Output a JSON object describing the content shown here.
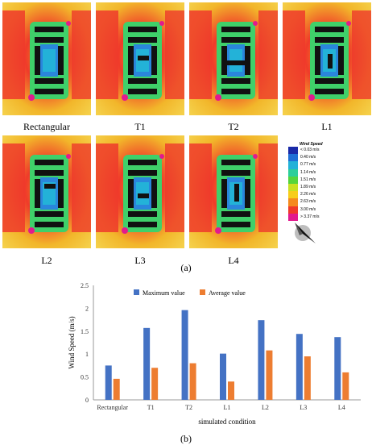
{
  "panels": [
    {
      "label": "Rectangular",
      "variant": "rect"
    },
    {
      "label": "T1",
      "variant": "t1"
    },
    {
      "label": "T2",
      "variant": "t2"
    },
    {
      "label": "L1",
      "variant": "l1"
    },
    {
      "label": "L2",
      "variant": "l2"
    },
    {
      "label": "L3",
      "variant": "l3"
    },
    {
      "label": "L4",
      "variant": "l4"
    }
  ],
  "legend": {
    "title": "Wind Speed",
    "items": [
      {
        "text": "< 0.03 m/s",
        "color": "#1a2aa8"
      },
      {
        "text": "0.40 m/s",
        "color": "#1f6fd6"
      },
      {
        "text": "0.77 m/s",
        "color": "#23b2d8"
      },
      {
        "text": "1.14 m/s",
        "color": "#2ccf9a"
      },
      {
        "text": "1.51 m/s",
        "color": "#55d53c"
      },
      {
        "text": "1.89 m/s",
        "color": "#c8e022"
      },
      {
        "text": "2.26 m/s",
        "color": "#f7cd1a"
      },
      {
        "text": "2.63 m/s",
        "color": "#f58a1e"
      },
      {
        "text": "3.00 m/s",
        "color": "#f03a2a"
      },
      {
        "text": "> 3.37 m/s",
        "color": "#e21a8e"
      }
    ]
  },
  "caption_a": "(a)",
  "caption_b": "(b)",
  "colors": {
    "max": "#4472c4",
    "avg": "#ed7d31",
    "building": "#111111"
  },
  "chart_data": {
    "type": "bar",
    "categories": [
      "Rectangular",
      "T1",
      "T2",
      "L1",
      "L2",
      "L3",
      "L4"
    ],
    "series": [
      {
        "name": "Maximum value",
        "values": [
          0.75,
          1.57,
          1.96,
          1.01,
          1.74,
          1.44,
          1.37
        ]
      },
      {
        "name": "Average value",
        "values": [
          0.46,
          0.7,
          0.8,
          0.4,
          1.08,
          0.95,
          0.6
        ]
      }
    ],
    "xlabel": "simulated condition",
    "ylabel": "Wind Speed (m/s)",
    "ylim": [
      0,
      2.5
    ],
    "yticks": [
      "0",
      "0.5",
      "1",
      "1.5",
      "2",
      "2.5"
    ],
    "grid": false,
    "legend_position": "top"
  }
}
